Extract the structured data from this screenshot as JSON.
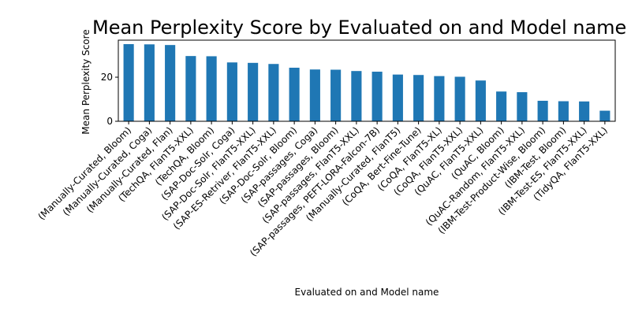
{
  "chart_data": {
    "type": "bar",
    "title": "Mean Perplexity Score by Evaluated on and Model name",
    "xlabel": "Evaluated on and Model name",
    "ylabel": "Mean Perplexity Score",
    "ylim": [
      0,
      36.8
    ],
    "yticks": [
      0,
      20
    ],
    "grid": false,
    "bar_color": "#1f77b4",
    "categories": [
      "(Manually-Curated, Bloom)",
      "(Manually-Curated, Coga)",
      "(Manually-Curated, Flan)",
      "(TechQA, FlanT5-XXL)",
      "(TechQA, Bloom)",
      "(SAP-Doc-Solr, Coga)",
      "(SAP-Doc-Solr, FlanT5-XXL)",
      "(SAP-ES-Retriver, FlanT5-XXL)",
      "(SAP-Doc-Solr, Bloom)",
      "(SAP-passages, Coga)",
      "(SAP-passages, Bloom)",
      "(SAP-passages, FlanT5-XXL)",
      "(SAP-passages, PEFT-LORA-Falcon-7B)",
      "(Manually-Curated, FlanT5)",
      "(CoQA, Bert-Fine-Tune)",
      "(CoQA, FlanT5-XL)",
      "(CoQA, FlanT5-XXL)",
      "(QuAC, FlanT5-XXL)",
      "(QuAC, Bloom)",
      "(QuAC-Random, FlanT5-XXL)",
      "(IBM-Test-Product-Wise, Bloom)",
      "(IBM-Test, Bloom)",
      "(IBM-Test-ES, FlanT5-XXL)",
      "(TidyQA, FlanT5-XXL)"
    ],
    "values": [
      35.0,
      34.9,
      34.6,
      29.6,
      29.5,
      26.7,
      26.5,
      26.0,
      24.3,
      23.5,
      23.4,
      22.8,
      22.5,
      21.2,
      21.0,
      20.5,
      20.2,
      18.5,
      13.5,
      13.2,
      9.3,
      9.1,
      9.0,
      4.8
    ]
  }
}
